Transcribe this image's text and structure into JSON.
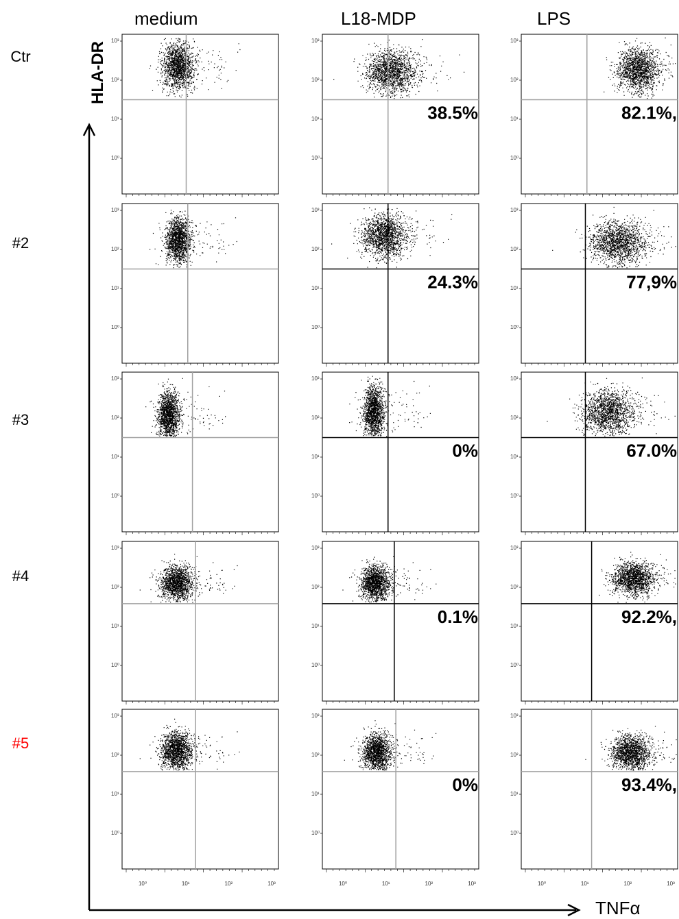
{
  "column_labels": [
    "medium",
    "L18-MDP",
    "LPS"
  ],
  "row_labels": [
    {
      "text": "Ctr",
      "color": "#000000"
    },
    {
      "text": "#2",
      "color": "#000000"
    },
    {
      "text": "#3",
      "color": "#000000"
    },
    {
      "text": "#4",
      "color": "#000000"
    },
    {
      "text": "#5",
      "color": "#ff0000"
    }
  ],
  "y_axis_label": "HLA-DR",
  "x_axis_label": "TNFα",
  "chart_data": {
    "type": "scatter",
    "plot_kind": "flow cytometry dot plot grid",
    "x_log_decades": [
      "10⁰",
      "10¹",
      "10²",
      "10³"
    ],
    "y_log_decades": [
      "10⁰",
      "10¹",
      "10²",
      "10³"
    ],
    "panels": [
      {
        "row": "Ctr",
        "column": "medium",
        "percent": ""
      },
      {
        "row": "Ctr",
        "column": "L18-MDP",
        "percent": "38.5%"
      },
      {
        "row": "Ctr",
        "column": "LPS",
        "percent": "82.1%,"
      },
      {
        "row": "#2",
        "column": "medium",
        "percent": ""
      },
      {
        "row": "#2",
        "column": "L18-MDP",
        "percent": "24.3%"
      },
      {
        "row": "#2",
        "column": "LPS",
        "percent": "77,9%"
      },
      {
        "row": "#3",
        "column": "medium",
        "percent": ""
      },
      {
        "row": "#3",
        "column": "L18-MDP",
        "percent": "0%"
      },
      {
        "row": "#3",
        "column": "LPS",
        "percent": "67.0%"
      },
      {
        "row": "#4",
        "column": "medium",
        "percent": ""
      },
      {
        "row": "#4",
        "column": "L18-MDP",
        "percent": "0.1%"
      },
      {
        "row": "#4",
        "column": "LPS",
        "percent": "92.2%,"
      },
      {
        "row": "#5",
        "column": "medium",
        "percent": ""
      },
      {
        "row": "#5",
        "column": "L18-MDP",
        "percent": "0%"
      },
      {
        "row": "#5",
        "column": "LPS",
        "percent": "93.4%,"
      }
    ]
  }
}
